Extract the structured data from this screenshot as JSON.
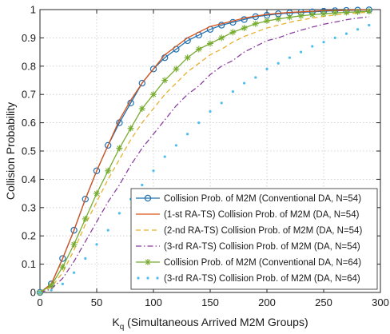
{
  "chart_data": {
    "type": "line",
    "xlabel_main": "K",
    "xlabel_sub": "q",
    "xlabel_rest": " (Simultaneous Arrived M2M Groups)",
    "ylabel": "Collision  Probability",
    "xlim": [
      0,
      300
    ],
    "ylim": [
      0,
      1
    ],
    "grid": true,
    "legend_position": "bottom-right",
    "x_ticks": [
      0,
      50,
      100,
      150,
      200,
      250,
      300
    ],
    "y_ticks": [
      0,
      0.1,
      0.2,
      0.3,
      0.4,
      0.5,
      0.6,
      0.7,
      0.8,
      0.9,
      1
    ],
    "x": [
      0,
      10,
      20,
      30,
      40,
      50,
      60,
      70,
      80,
      90,
      100,
      110,
      120,
      130,
      140,
      150,
      160,
      170,
      180,
      190,
      200,
      210,
      220,
      230,
      240,
      250,
      260,
      270,
      280,
      290
    ],
    "series": [
      {
        "name": "Collision Prob. of M2M (Conventional DA, N=54)",
        "color": "#1f6fb2",
        "style": "solid-circle",
        "values": [
          0,
          0.03,
          0.12,
          0.22,
          0.33,
          0.43,
          0.52,
          0.6,
          0.67,
          0.74,
          0.79,
          0.83,
          0.86,
          0.89,
          0.91,
          0.93,
          0.945,
          0.955,
          0.965,
          0.975,
          0.98,
          0.985,
          0.988,
          0.99,
          0.992,
          0.994,
          0.996,
          0.997,
          0.998,
          0.999
        ]
      },
      {
        "name": "(1-st RA-TS) Collision Prob. of M2M (DA, N=54)",
        "color": "#d95319",
        "style": "solid",
        "values": [
          0,
          0.03,
          0.12,
          0.22,
          0.33,
          0.43,
          0.52,
          0.61,
          0.68,
          0.74,
          0.79,
          0.84,
          0.87,
          0.9,
          0.92,
          0.94,
          0.95,
          0.96,
          0.97,
          0.977,
          0.983,
          0.987,
          0.99,
          0.992,
          0.994,
          0.996,
          0.997,
          0.998,
          0.999,
          0.999
        ]
      },
      {
        "name": "(2-nd RA-TS) Collision Prob. of M2M (DA, N=54)",
        "color": "#e6b12e",
        "style": "dashed",
        "values": [
          0,
          0.018,
          0.07,
          0.15,
          0.24,
          0.32,
          0.4,
          0.47,
          0.54,
          0.6,
          0.65,
          0.7,
          0.74,
          0.78,
          0.81,
          0.84,
          0.86,
          0.885,
          0.905,
          0.92,
          0.935,
          0.945,
          0.955,
          0.963,
          0.97,
          0.976,
          0.981,
          0.985,
          0.988,
          0.991
        ]
      },
      {
        "name": "(3-rd RA-TS) Collision Prob. of M2M (DA, N=54)",
        "color": "#8b3fa0",
        "style": "dashdot",
        "values": [
          0,
          0.012,
          0.05,
          0.11,
          0.18,
          0.25,
          0.32,
          0.38,
          0.45,
          0.51,
          0.56,
          0.61,
          0.66,
          0.7,
          0.73,
          0.77,
          0.8,
          0.82,
          0.85,
          0.87,
          0.89,
          0.9,
          0.915,
          0.927,
          0.938,
          0.948,
          0.956,
          0.964,
          0.97,
          0.975
        ]
      },
      {
        "name": "Collision Prob. of M2M (Conventional DA, N=64)",
        "color": "#77ac30",
        "style": "solid-star",
        "values": [
          0,
          0.025,
          0.09,
          0.17,
          0.26,
          0.35,
          0.43,
          0.51,
          0.58,
          0.65,
          0.7,
          0.75,
          0.79,
          0.83,
          0.86,
          0.88,
          0.9,
          0.92,
          0.935,
          0.95,
          0.96,
          0.967,
          0.973,
          0.978,
          0.982,
          0.985,
          0.988,
          0.99,
          0.992,
          0.994
        ]
      },
      {
        "name": "(3-rd RA-TS) Collision Prob. of M2M (DA, N=64)",
        "color": "#4dbeee",
        "style": "dotted",
        "values": [
          0,
          0.008,
          0.03,
          0.07,
          0.12,
          0.17,
          0.22,
          0.28,
          0.33,
          0.38,
          0.43,
          0.48,
          0.52,
          0.56,
          0.6,
          0.64,
          0.67,
          0.71,
          0.74,
          0.76,
          0.79,
          0.81,
          0.83,
          0.85,
          0.87,
          0.885,
          0.9,
          0.915,
          0.93,
          0.945
        ]
      }
    ]
  }
}
